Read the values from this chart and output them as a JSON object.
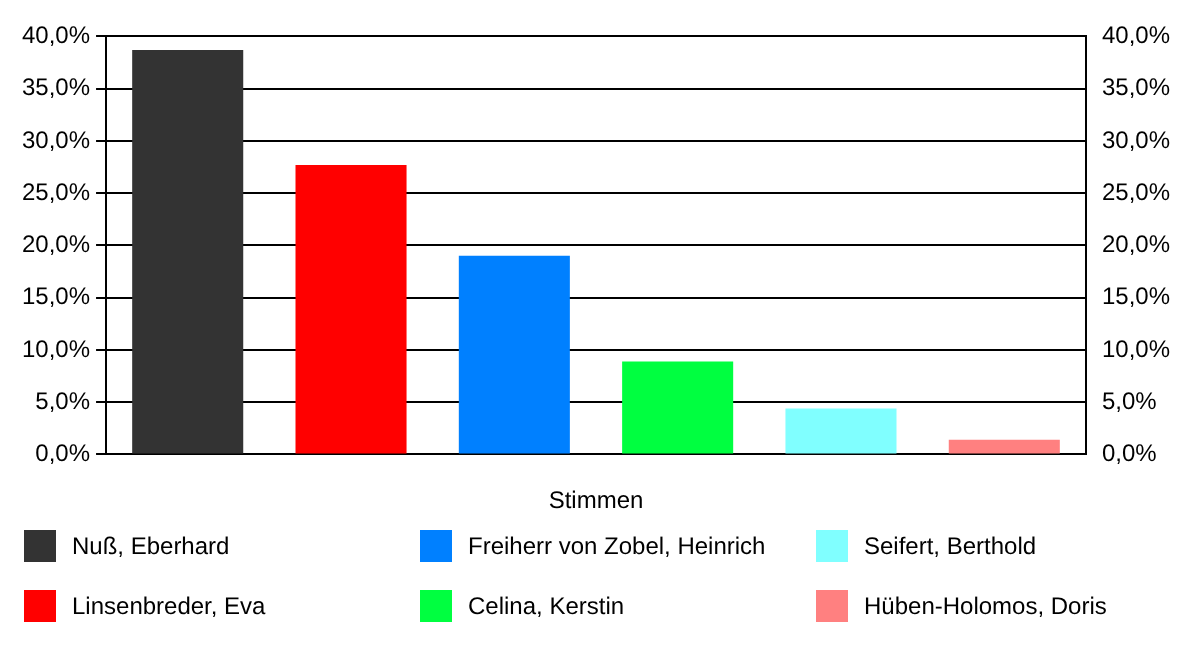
{
  "chart_data": {
    "type": "bar",
    "xlabel": "Stimmen",
    "categories": [
      null
    ],
    "series": [
      {
        "name": "Nuß, Eberhard",
        "color": "#333333",
        "values": [
          38.7
        ]
      },
      {
        "name": "Linsenbreder, Eva",
        "color": "#ff0000",
        "values": [
          27.7
        ]
      },
      {
        "name": "Freiherr von Zobel, Heinrich",
        "color": "#0080ff",
        "values": [
          19.0
        ]
      },
      {
        "name": "Celina, Kerstin",
        "color": "#00ff40",
        "values": [
          8.9
        ]
      },
      {
        "name": "Seifert, Berthold",
        "color": "#80ffff",
        "values": [
          4.4
        ]
      },
      {
        "name": "Hüben-Holomos, Doris",
        "color": "#ff8080",
        "values": [
          1.4
        ]
      }
    ],
    "ylim": [
      0,
      40
    ],
    "yticks": [
      {
        "value": 0,
        "label": "0,0%"
      },
      {
        "value": 5,
        "label": "5,0%"
      },
      {
        "value": 10,
        "label": "10,0%"
      },
      {
        "value": 15,
        "label": "15,0%"
      },
      {
        "value": 20,
        "label": "20,0%"
      },
      {
        "value": 25,
        "label": "25,0%"
      },
      {
        "value": 30,
        "label": "30,0%"
      },
      {
        "value": 35,
        "label": "35,0%"
      },
      {
        "value": 40,
        "label": "40,0%"
      }
    ],
    "y2lim": [
      0,
      40
    ],
    "y2ticks": [
      {
        "value": 0,
        "label": "0,0%"
      },
      {
        "value": 5,
        "label": "5,0%"
      },
      {
        "value": 10,
        "label": "10,0%"
      },
      {
        "value": 15,
        "label": "15,0%"
      },
      {
        "value": 20,
        "label": "20,0%"
      },
      {
        "value": 25,
        "label": "25,0%"
      },
      {
        "value": 30,
        "label": "30,0%"
      },
      {
        "value": 35,
        "label": "35,0%"
      },
      {
        "value": 40,
        "label": "40,0%"
      }
    ],
    "grid": "y",
    "legend": "bottom"
  }
}
